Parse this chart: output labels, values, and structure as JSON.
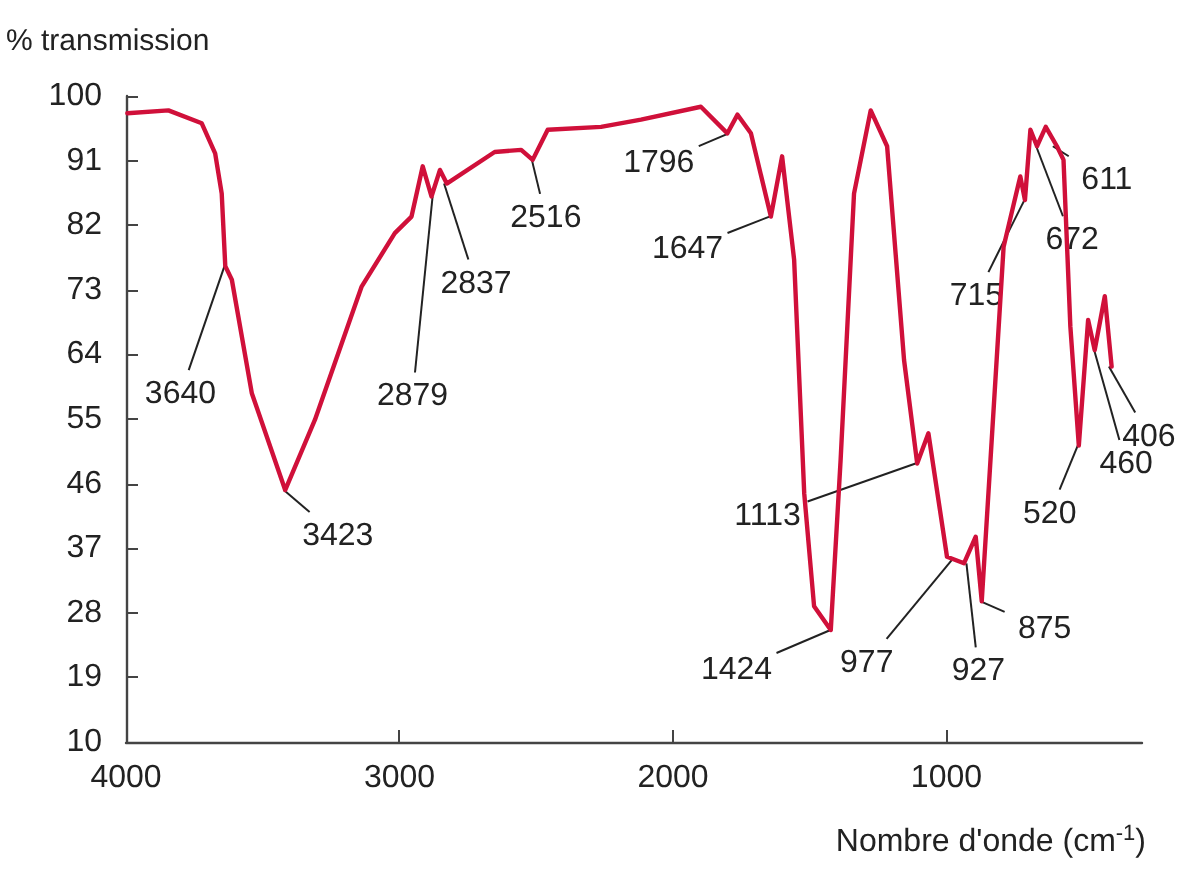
{
  "chart_data": {
    "type": "line",
    "ylabel": "% transmission",
    "xlabel": "Nombre d'onde (cm$^{-1}$)",
    "color": "#d0103a",
    "marker": "none",
    "line_style": "solid",
    "grid": false,
    "xlim": [
      4000,
      285
    ],
    "xticks": [
      4000,
      3000,
      2000,
      1000
    ],
    "ylim": [
      10,
      100
    ],
    "yticks": [
      10,
      19,
      28,
      37,
      46,
      55,
      64,
      73,
      82,
      91,
      100
    ],
    "x": [
      3995,
      3845,
      3723,
      3674,
      3650,
      3637,
      3613,
      3540,
      3418,
      3309,
      3139,
      3017,
      2956,
      2915,
      2883,
      2852,
      2827,
      2652,
      2555,
      2513,
      2458,
      2263,
      2117,
      1898,
      1801,
      1764,
      1715,
      1642,
      1601,
      1557,
      1520,
      1484,
      1423,
      1387,
      1338,
      1277,
      1217,
      1155,
      1107,
      1066,
      998,
      936,
      893,
      871,
      839,
      791,
      730,
      713,
      693,
      669,
      637,
      596,
      572,
      547,
      516,
      482,
      458,
      421,
      396
    ],
    "values": [
      97.6,
      98,
      96.2,
      92,
      86.4,
      76.3,
      74.4,
      58.6,
      45.1,
      54.9,
      73.4,
      80.9,
      83.2,
      90.2,
      86,
      89.7,
      87.8,
      92.2,
      92.5,
      91.1,
      95.3,
      95.7,
      96.7,
      98.5,
      94.8,
      97.4,
      94.8,
      83.2,
      91.6,
      77.2,
      44.6,
      28.9,
      25.6,
      49.3,
      86.4,
      98,
      93,
      63.2,
      48.8,
      53,
      35.8,
      34.9,
      38.6,
      29.6,
      49.3,
      79,
      88.8,
      85.5,
      95.3,
      93,
      95.7,
      93,
      91.1,
      67.9,
      51.3,
      68.8,
      64.6,
      72.1,
      62.3
    ],
    "annotations": [
      {
        "text": "3640",
        "x": 3640,
        "y": 76.3
      },
      {
        "text": "3423",
        "x": 3423,
        "y": 45.1
      },
      {
        "text": "2879",
        "x": 2879,
        "y": 86
      },
      {
        "text": "2837",
        "x": 2837,
        "y": 87.8
      },
      {
        "text": "2516",
        "x": 2516,
        "y": 91.1
      },
      {
        "text": "1796",
        "x": 1796,
        "y": 94.8
      },
      {
        "text": "1647",
        "x": 1647,
        "y": 83.2
      },
      {
        "text": "1424",
        "x": 1424,
        "y": 25.6
      },
      {
        "text": "1113",
        "x": 1113,
        "y": 48.8
      },
      {
        "text": "977",
        "x": 977,
        "y": 35.5
      },
      {
        "text": "927",
        "x": 927,
        "y": 34.9
      },
      {
        "text": "875",
        "x": 875,
        "y": 29.6
      },
      {
        "text": "715",
        "x": 715,
        "y": 85.5
      },
      {
        "text": "672",
        "x": 672,
        "y": 93
      },
      {
        "text": "611",
        "x": 611,
        "y": 93
      },
      {
        "text": "520",
        "x": 520,
        "y": 51.3
      },
      {
        "text": "460",
        "x": 460,
        "y": 64.6
      },
      {
        "text": "406",
        "x": 406,
        "y": 62.3
      }
    ]
  }
}
